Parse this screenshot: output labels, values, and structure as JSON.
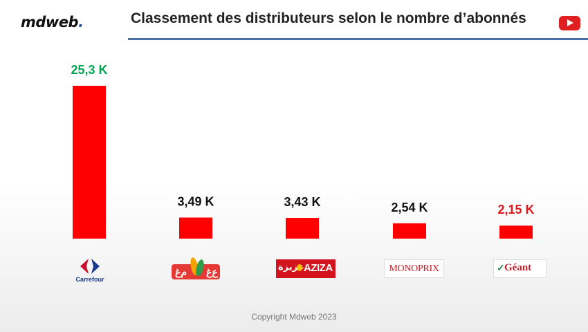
{
  "header": {
    "logo_text": "mdweb",
    "logo_dot": ".",
    "title": "Classement des distributeurs selon le nombre d’abonnés",
    "video_icon": "youtube-icon"
  },
  "colors": {
    "bar": "#ff0000",
    "label_top": "#00a651",
    "label_default": "#111111",
    "label_last": "#e0161e",
    "rule": "#4a6fa5"
  },
  "chart_data": {
    "type": "bar",
    "title": "Classement des distributeurs selon le nombre d’abonnés",
    "categories": [
      "Carrefour",
      "Mg",
      "Aziza",
      "Monoprix",
      "Géant"
    ],
    "values": [
      25.3,
      3.49,
      3.43,
      2.54,
      2.15
    ],
    "labels": [
      "25,3 K",
      "3,49 K",
      "3,43 K",
      "2,54 K",
      "2,15 K"
    ],
    "unit": "K",
    "ylim": [
      0,
      25.3
    ],
    "grid": false,
    "legend": "none"
  },
  "brands": {
    "carrefour_text": "Carrefour",
    "mg_left": "ﻡﻍ",
    "mg_right": "ﻉﻍ",
    "aziza_ar": "عزيزة",
    "aziza_lat": "AZIZA",
    "monoprix": "MONOPRIX",
    "geant": "Géant"
  },
  "footer": {
    "copyright": "Copyright Mdweb 2023"
  }
}
